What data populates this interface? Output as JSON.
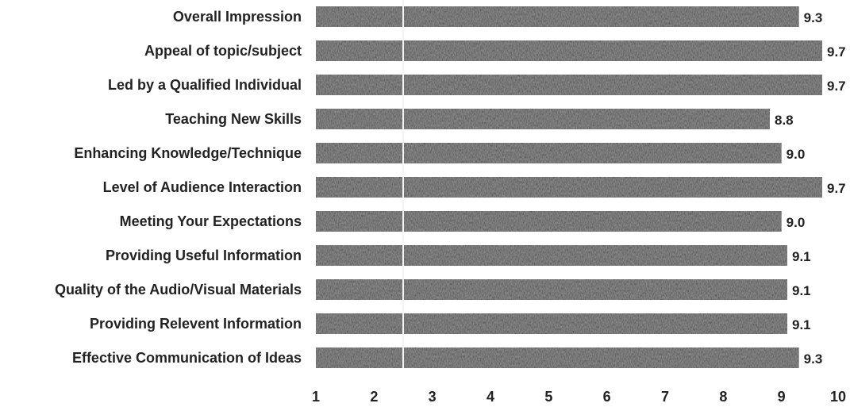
{
  "chart_data": {
    "type": "bar",
    "orientation": "horizontal",
    "categories": [
      "Overall Impression",
      "Appeal of topic/subject",
      "Led by a Qualified Individual",
      "Teaching New Skills",
      "Enhancing Knowledge/Technique",
      "Level of Audience Interaction",
      "Meeting Your Expectations",
      "Providing Useful Information",
      "Quality of the Audio/Visual Materials",
      "Providing Relevent Information",
      "Effective Communication of Ideas"
    ],
    "values": [
      9.3,
      9.7,
      9.7,
      8.8,
      9.0,
      9.7,
      9.0,
      9.1,
      9.1,
      9.1,
      9.3
    ],
    "value_labels": [
      "9.3",
      "9.7",
      "9.7",
      "8.8",
      "9.0",
      "9.7",
      "9.0",
      "9.1",
      "9.1",
      "9.1",
      "9.3"
    ],
    "xlim": [
      1,
      10
    ],
    "xticks": [
      "1",
      "2",
      "3",
      "4",
      "5",
      "6",
      "7",
      "8",
      "9",
      "10"
    ],
    "title": "",
    "xlabel": "",
    "ylabel": "",
    "grid": false,
    "bar_color": "#1e1e1e"
  }
}
